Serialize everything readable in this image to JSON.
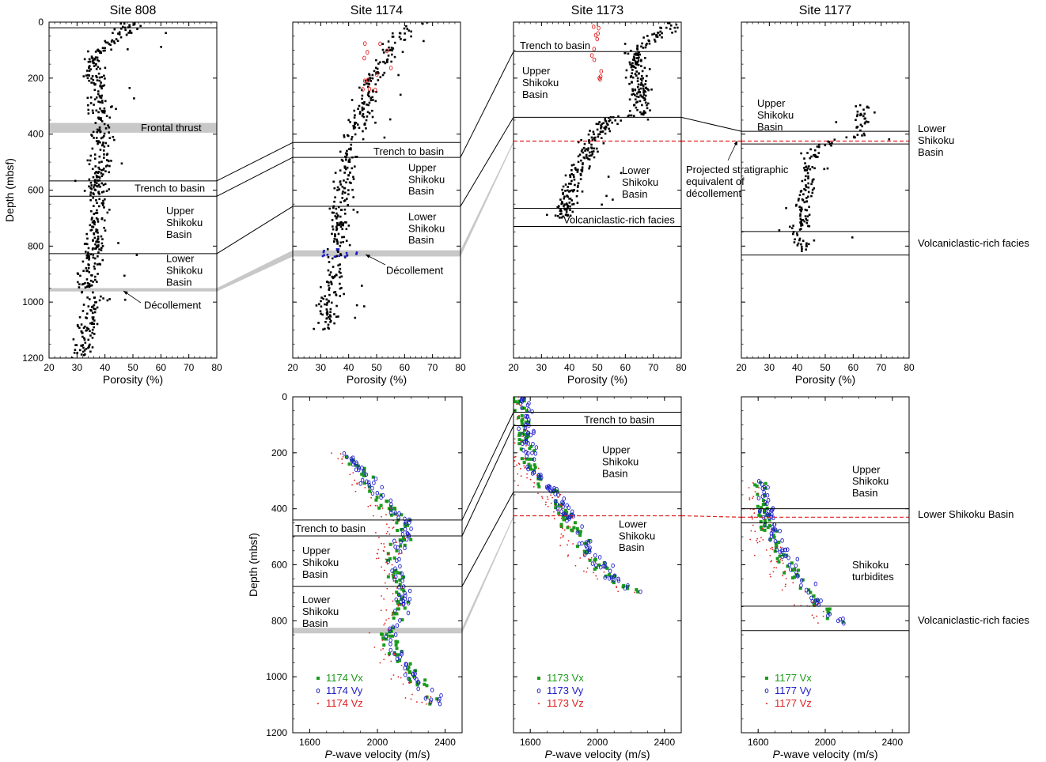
{
  "colors": {
    "black": "#000000",
    "green": "#1a9a1a",
    "blue": "#1c1cc8",
    "red": "#e02020",
    "grey": "#c8c8c8"
  },
  "chart_data": [
    {
      "id": "por808",
      "type": "scatter",
      "title": "Site 808",
      "xlabel": "Porosity (%)",
      "ylabel": "Depth (mbsf)",
      "xlim": [
        20,
        80
      ],
      "ylim": [
        1200,
        0
      ],
      "xticks": [
        "20",
        "30",
        "40",
        "50",
        "60",
        "70",
        "80"
      ],
      "yticks": [
        "0",
        "200",
        "400",
        "600",
        "800",
        "1000",
        "1200"
      ],
      "boundaries": [
        20,
        567,
        622,
        827
      ],
      "bands": [
        [
          360,
          395
        ],
        [
          950,
          962
        ]
      ],
      "units": [
        {
          "label": "Frontal thrust",
          "depth": 375
        },
        {
          "label": "Trench to basin",
          "depth": 592
        },
        {
          "label": "Upper\nShikoku\nBasin",
          "depth": 715
        },
        {
          "label": "Lower\nShikoku\nBasin",
          "depth": 885
        },
        {
          "label": "Décollement",
          "depth": 1010
        }
      ],
      "trend": [
        [
          50,
          0
        ],
        [
          36,
          130
        ],
        [
          39,
          400
        ],
        [
          37,
          600
        ],
        [
          36,
          800
        ],
        [
          33,
          960
        ],
        [
          37,
          980
        ],
        [
          31,
          1200
        ]
      ],
      "series": [
        {
          "marker": "dot",
          "color": "black"
        }
      ]
    },
    {
      "id": "por1174",
      "type": "scatter",
      "title": "Site 1174",
      "xlabel": "Porosity (%)",
      "ylabel": "",
      "xlim": [
        20,
        80
      ],
      "ylim": [
        1200,
        0
      ],
      "xticks": [
        "20",
        "30",
        "40",
        "50",
        "60",
        "70",
        "80"
      ],
      "yticks": [],
      "boundaries": [
        430,
        483,
        658
      ],
      "bands": [
        [
          815,
          837
        ]
      ],
      "units": [
        {
          "label": "Trench to basin",
          "depth": 460
        },
        {
          "label": "Upper\nShikoku\nBasin",
          "depth": 560
        },
        {
          "label": "Lower\nShikoku\nBasin",
          "depth": 735
        },
        {
          "label": "Décollement",
          "depth": 885
        }
      ],
      "trend": [
        [
          66,
          0
        ],
        [
          58,
          40
        ],
        [
          48,
          220
        ],
        [
          42,
          400
        ],
        [
          38,
          600
        ],
        [
          36,
          800
        ],
        [
          34,
          950
        ],
        [
          32,
          1100
        ]
      ],
      "series": [
        {
          "marker": "dot",
          "color": "black"
        },
        {
          "marker": "circle",
          "color": "red"
        },
        {
          "marker": "dot",
          "color": "blue"
        }
      ]
    },
    {
      "id": "por1173",
      "type": "scatter",
      "title": "Site 1173",
      "xlabel": "Porosity (%)",
      "ylabel": "",
      "xlim": [
        20,
        80
      ],
      "ylim": [
        1200,
        0
      ],
      "xticks": [
        "20",
        "30",
        "40",
        "50",
        "60",
        "70",
        "80"
      ],
      "yticks": [],
      "boundaries": [
        105,
        340,
        665,
        730
      ],
      "dashed": [
        425
      ],
      "units": [
        {
          "label": "Trench to basin",
          "depth": 82
        },
        {
          "label": "Upper\nShikoku\nBasin",
          "depth": 215
        },
        {
          "label": "Lower\nShikoku\nBasin",
          "depth": 570
        },
        {
          "label": "Volcaniclastic-rich facies",
          "depth": 705
        }
      ],
      "trend": [
        [
          78,
          0
        ],
        [
          64,
          100
        ],
        [
          66,
          330
        ],
        [
          55,
          340
        ],
        [
          48,
          430
        ],
        [
          42,
          550
        ],
        [
          37,
          700
        ]
      ],
      "series": [
        {
          "marker": "dot",
          "color": "black"
        },
        {
          "marker": "circle",
          "color": "red"
        }
      ]
    },
    {
      "id": "por1177",
      "type": "scatter",
      "title": "Site 1177",
      "xlabel": "Porosity (%)",
      "ylabel": "",
      "xlim": [
        20,
        80
      ],
      "ylim": [
        1200,
        0
      ],
      "xticks": [
        "20",
        "30",
        "40",
        "50",
        "60",
        "70",
        "80"
      ],
      "yticks": [],
      "boundaries": [
        390,
        435,
        748,
        832
      ],
      "dashed": [
        425
      ],
      "units": [
        {
          "label": "Upper\nShikoku\nBasin",
          "depth": 330
        }
      ],
      "trend": [
        [
          63,
          295
        ],
        [
          63,
          400
        ],
        [
          52,
          430
        ],
        [
          46,
          460
        ],
        [
          43,
          600
        ],
        [
          41,
          760
        ],
        [
          42,
          820
        ]
      ],
      "series": [
        {
          "marker": "dot",
          "color": "black"
        }
      ]
    },
    {
      "id": "vel1174",
      "type": "scatter",
      "title": "",
      "xlabel": "-wave velocity (m/s)",
      "xlabel_prefix": "P",
      "ylabel": "Depth (mbsf)",
      "xlim": [
        1500,
        2500
      ],
      "ylim": [
        1200,
        0
      ],
      "xticks": [
        "1600",
        "2000",
        "2400"
      ],
      "yticks": [
        "0",
        "200",
        "400",
        "600",
        "800",
        "1000",
        "1200"
      ],
      "boundaries": [
        440,
        497,
        677
      ],
      "bands": [
        [
          825,
          845
        ]
      ],
      "units": [
        {
          "label": "Trench to basin",
          "depth": 468
        },
        {
          "label": "Upper\nShikoku\nBasin",
          "depth": 590
        },
        {
          "label": "Lower\nShikoku\nBasin",
          "depth": 765
        }
      ],
      "trend": [
        [
          1800,
          200
        ],
        [
          2000,
          350
        ],
        [
          2150,
          450
        ],
        [
          2100,
          600
        ],
        [
          2150,
          750
        ],
        [
          2050,
          850
        ],
        [
          2200,
          1000
        ],
        [
          2350,
          1100
        ]
      ],
      "legend": [
        "1174 Vx",
        "1174 Vy",
        "1174 Vz"
      ],
      "series": [
        {
          "name": "1174 Vx",
          "marker": "square",
          "color": "green"
        },
        {
          "name": "1174 Vy",
          "marker": "circle",
          "color": "blue"
        },
        {
          "name": "1174 Vz",
          "marker": "cross",
          "color": "red"
        }
      ]
    },
    {
      "id": "vel1173",
      "type": "scatter",
      "title": "",
      "xlabel": "-wave velocity (m/s)",
      "xlabel_prefix": "P",
      "ylabel": "",
      "xlim": [
        1500,
        2500
      ],
      "ylim": [
        1200,
        0
      ],
      "xticks": [
        "1600",
        "2000",
        "2400"
      ],
      "yticks": [],
      "boundaries": [
        55,
        103,
        340
      ],
      "dashed": [
        425
      ],
      "units": [
        {
          "label": "Trench to basin",
          "depth": 80
        },
        {
          "label": "Upper\nShikoku\nBasin",
          "depth": 230
        },
        {
          "label": "Lower\nShikoku\nBasin",
          "depth": 495
        }
      ],
      "trend": [
        [
          1530,
          0
        ],
        [
          1560,
          100
        ],
        [
          1580,
          230
        ],
        [
          1650,
          290
        ],
        [
          1750,
          360
        ],
        [
          1850,
          460
        ],
        [
          1950,
          560
        ],
        [
          2100,
          660
        ],
        [
          2250,
          700
        ]
      ],
      "legend": [
        "1173 Vx",
        "1173 Vy",
        "1173 Vz"
      ],
      "series": [
        {
          "name": "1173 Vx",
          "marker": "square",
          "color": "green"
        },
        {
          "name": "1173 Vy",
          "marker": "circle",
          "color": "blue"
        },
        {
          "name": "1173 Vz",
          "marker": "cross",
          "color": "red"
        }
      ]
    },
    {
      "id": "vel1177",
      "type": "scatter",
      "title": "",
      "xlabel": "-wave velocity (m/s)",
      "xlabel_prefix": "P",
      "ylabel": "",
      "xlim": [
        1500,
        2500
      ],
      "ylim": [
        1200,
        0
      ],
      "xticks": [
        "1600",
        "2000",
        "2400"
      ],
      "yticks": [],
      "boundaries": [
        400,
        450,
        748,
        835
      ],
      "dashed": [
        430
      ],
      "units": [
        {
          "label": "Upper\nShikoku\nBasin",
          "depth": 300
        },
        {
          "label": "Shikoku\nturbidites",
          "depth": 620
        }
      ],
      "trend": [
        [
          1600,
          300
        ],
        [
          1650,
          450
        ],
        [
          1700,
          520
        ],
        [
          1800,
          620
        ],
        [
          1900,
          700
        ],
        [
          2000,
          770
        ],
        [
          2080,
          810
        ]
      ],
      "legend": [
        "1177 Vx",
        "1177 Vy",
        "1177 Vz"
      ],
      "series": [
        {
          "name": "1177 Vx",
          "marker": "square",
          "color": "green"
        },
        {
          "name": "1177 Vy",
          "marker": "circle",
          "color": "blue"
        },
        {
          "name": "1177 Vz",
          "marker": "cross",
          "color": "red"
        }
      ]
    }
  ],
  "annotations": {
    "por1177_right": [
      "Lower\nShikoku\nBasin",
      "Volcaniclastic-rich facies"
    ],
    "vel1177_right": [
      "Lower Shikoku Basin",
      "Volcaniclastic-rich facies"
    ],
    "projected": "Projected stratigraphic\nequivalent of\ndécollement"
  }
}
